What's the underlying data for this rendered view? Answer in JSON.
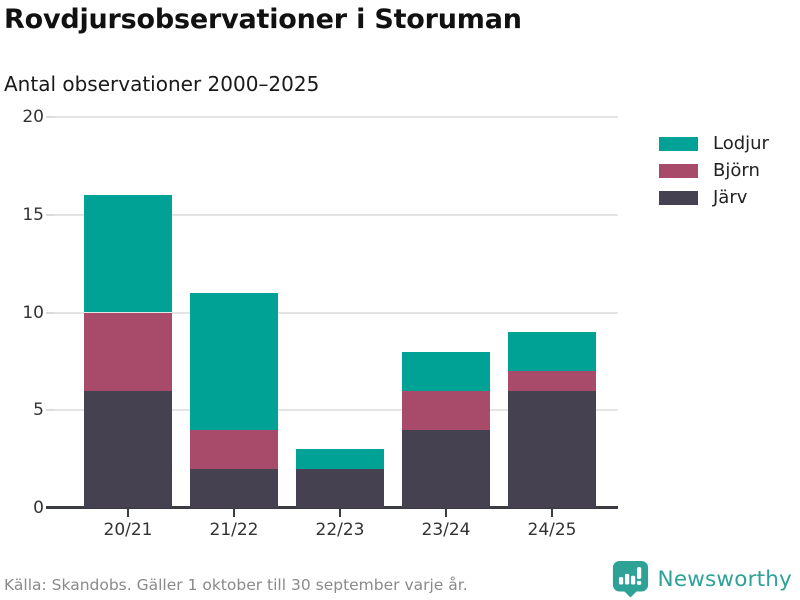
{
  "header": {
    "title": "Rovdjursobservationer i Storuman",
    "subtitle": "Antal observationer 2000–2025"
  },
  "chart_data": {
    "type": "bar",
    "stacked": true,
    "title": "Rovdjursobservationer i Storuman",
    "subtitle": "Antal observationer 2000–2025",
    "categories": [
      "20/21",
      "21/22",
      "22/23",
      "23/24",
      "24/25"
    ],
    "series": [
      {
        "name": "Järv",
        "color": "#454150",
        "values": [
          6,
          2,
          2,
          4,
          6
        ]
      },
      {
        "name": "Björn",
        "color": "#a84a6a",
        "values": [
          4,
          2,
          0,
          2,
          1
        ]
      },
      {
        "name": "Lodjur",
        "color": "#00a296",
        "values": [
          6,
          7,
          1,
          2,
          2
        ]
      }
    ],
    "totals": [
      16,
      11,
      3,
      8,
      9
    ],
    "xlabel": "",
    "ylabel": "",
    "ylim": [
      0,
      20
    ],
    "yticks": [
      0,
      5,
      10,
      15,
      20
    ],
    "grid": "horizontal",
    "legend_position": "right",
    "legend_order": [
      "Lodjur",
      "Björn",
      "Järv"
    ]
  },
  "footer": {
    "source": "Källa: Skandobs. Gäller 1 oktober till 30 september varje år.",
    "brand": "Newsworthy"
  },
  "colors": {
    "teal": "#00a296",
    "berry": "#a84a6a",
    "dark_slate": "#454150",
    "brand_teal": "#2ea297",
    "grid": "#e4e4e4",
    "axis": "#3b3b42",
    "tick_text": "#333333",
    "muted_text": "#8a8a8a"
  }
}
